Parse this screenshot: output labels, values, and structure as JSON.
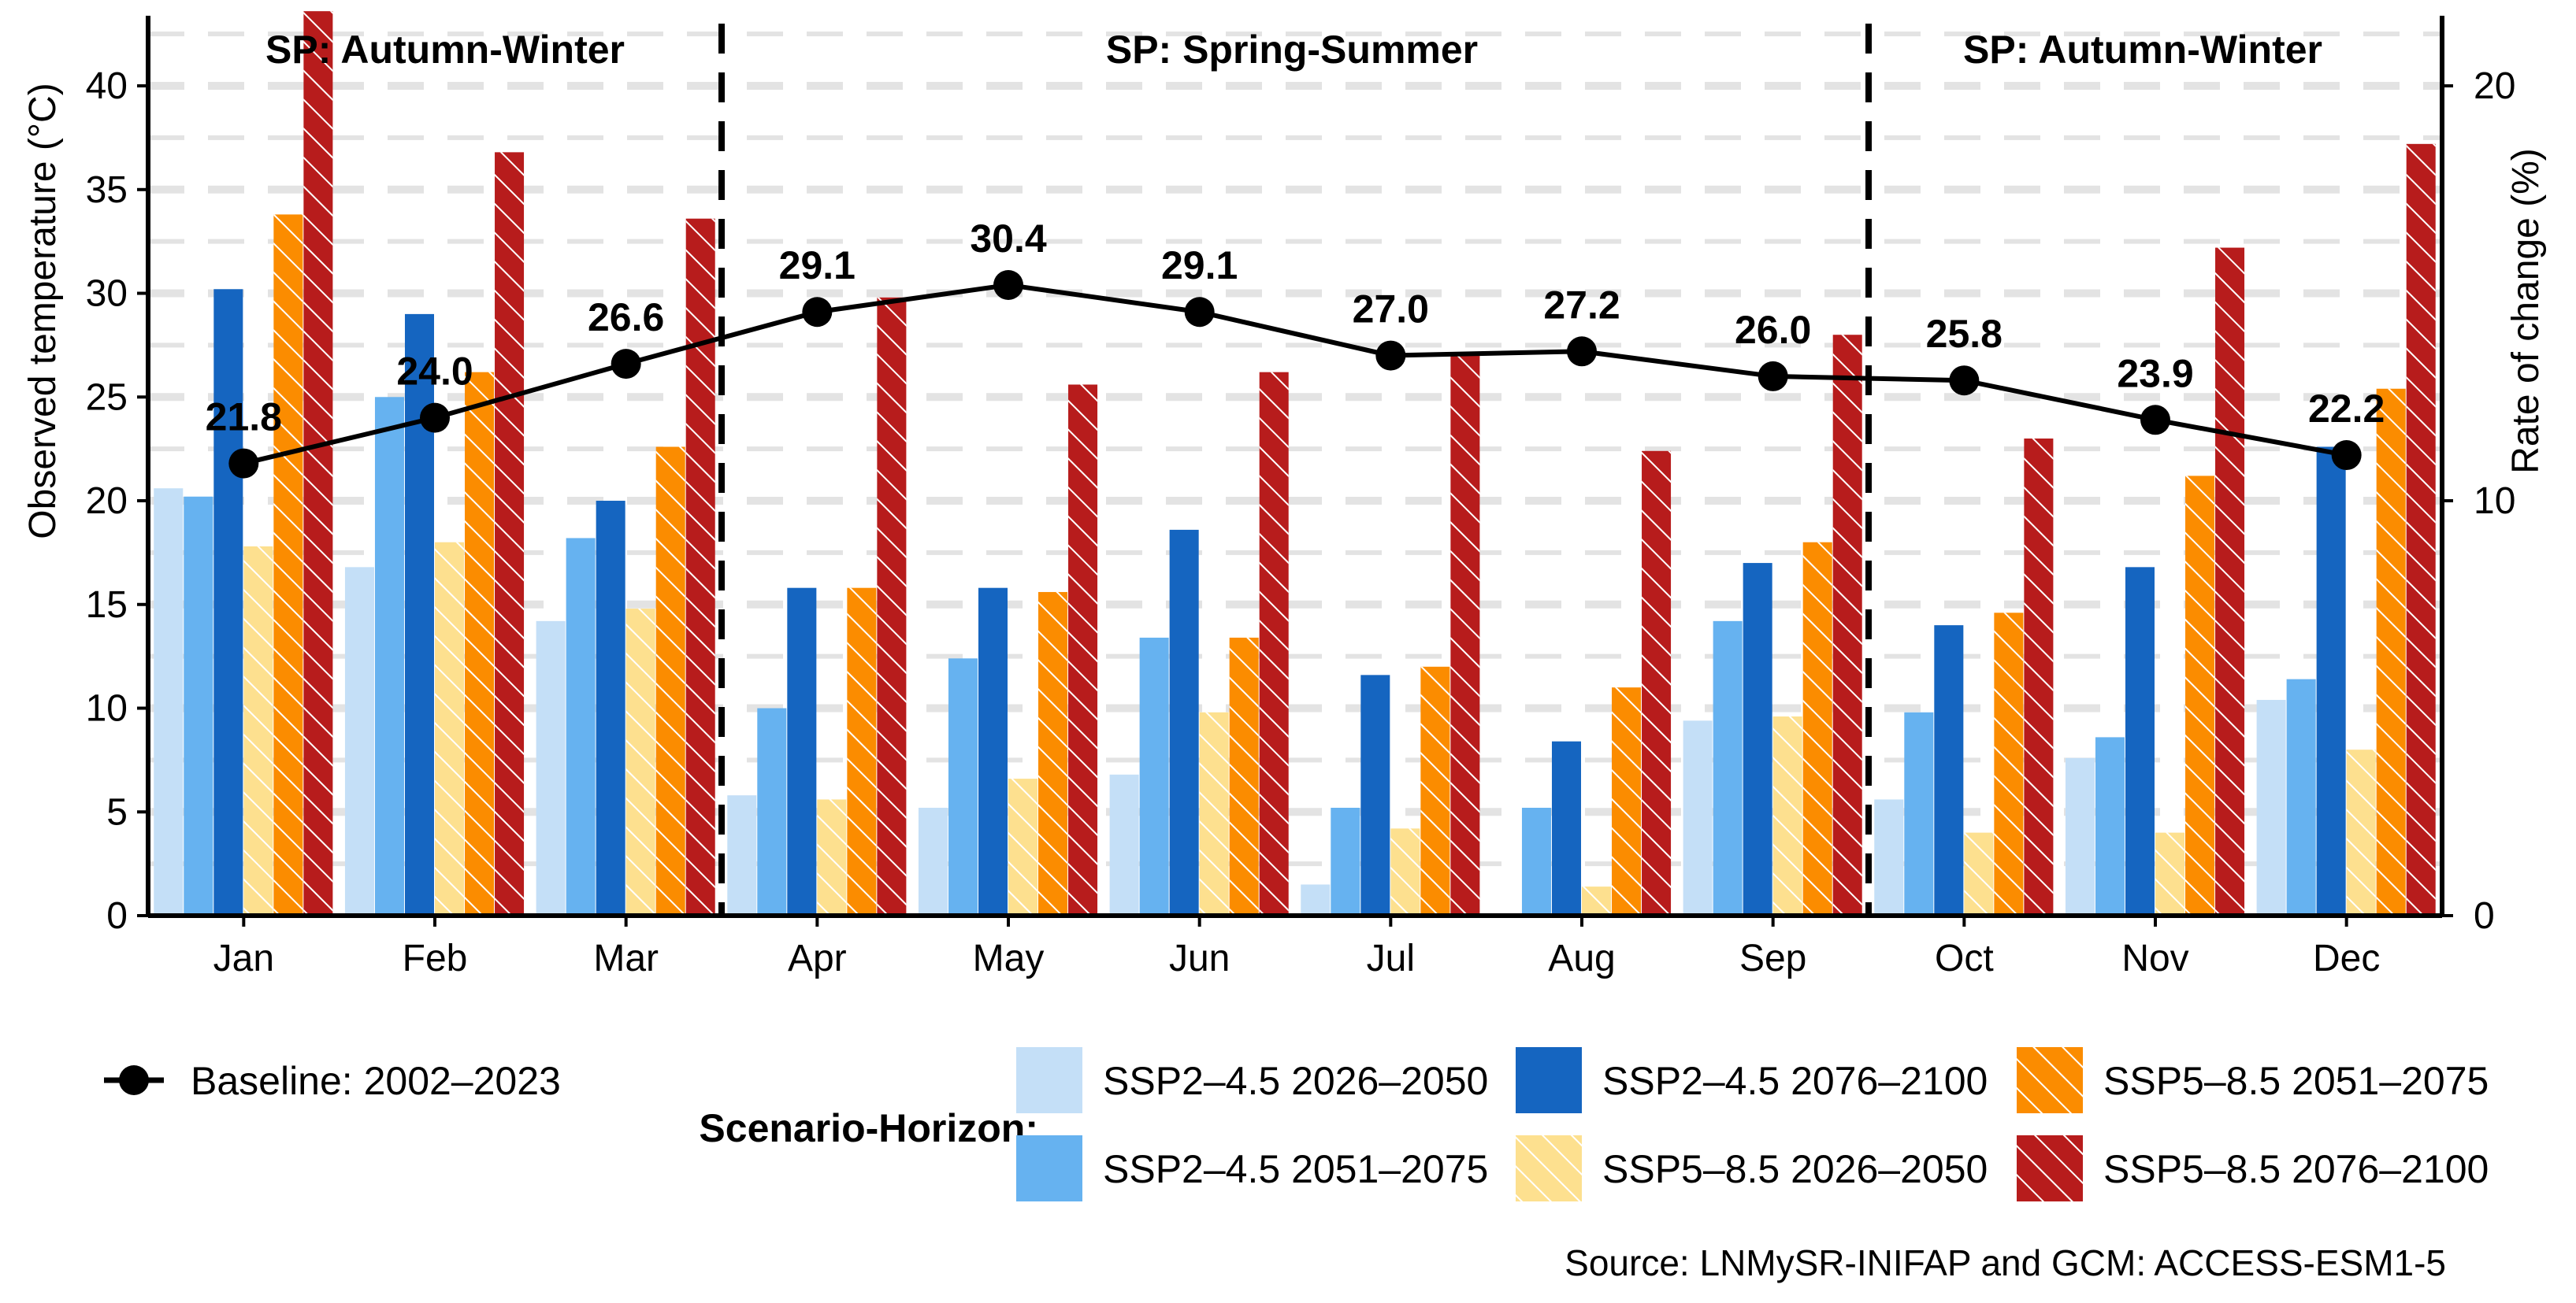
{
  "chart_data": {
    "type": "bar",
    "categories": [
      "Jan",
      "Feb",
      "Mar",
      "Apr",
      "May",
      "Jun",
      "Jul",
      "Aug",
      "Sep",
      "Oct",
      "Nov",
      "Dec"
    ],
    "ylabel": "Observed temperature (°C)",
    "y2label": "Rate of change (%)",
    "ylim": [
      0,
      43
    ],
    "y2lim": [
      0,
      21.5
    ],
    "yticks": [
      0,
      5,
      10,
      15,
      20,
      25,
      30,
      35,
      40
    ],
    "y2ticks": [
      0,
      10,
      20
    ],
    "grid": "horizontal dashed",
    "season_labels": [
      {
        "label": "SP: Autumn-Winter"
      },
      {
        "label": "SP: Spring-Summer"
      },
      {
        "label": "SP: Autumn-Winter"
      }
    ],
    "season_dividers_after": [
      "Mar",
      "Sep"
    ],
    "baseline": {
      "name": "Baseline: 2002–2023",
      "axis": "left",
      "values": [
        21.8,
        24.0,
        26.6,
        29.1,
        30.4,
        29.1,
        27.0,
        27.2,
        26.0,
        25.8,
        23.9,
        22.2
      ],
      "labels": [
        "21.8",
        "24.0",
        "26.6",
        "29.1",
        "30.4",
        "29.1",
        "27.0",
        "27.2",
        "26.0",
        "25.8",
        "23.9",
        "22.2"
      ],
      "color": "#000000"
    },
    "series": [
      {
        "name": "SSP2–4.5 2026–2050",
        "axis": "right",
        "color": "#c4dff7",
        "hatch": false,
        "values": [
          10.3,
          8.4,
          7.1,
          2.9,
          2.6,
          3.4,
          0.75,
          0.05,
          4.7,
          2.8,
          3.8,
          5.2
        ]
      },
      {
        "name": "SSP2–4.5 2051–2075",
        "axis": "right",
        "color": "#66b2f0",
        "hatch": false,
        "values": [
          10.1,
          12.5,
          9.1,
          5.0,
          6.2,
          6.7,
          2.6,
          2.6,
          7.1,
          4.9,
          4.3,
          5.7
        ]
      },
      {
        "name": "SSP2–4.5 2076–2100",
        "axis": "right",
        "color": "#1565c0",
        "hatch": false,
        "values": [
          15.1,
          14.5,
          10.0,
          7.9,
          7.9,
          9.3,
          5.8,
          4.2,
          8.5,
          7.0,
          8.4,
          11.3
        ]
      },
      {
        "name": "SSP5–8.5 2026–2050",
        "axis": "right",
        "color": "#fde08f",
        "hatch": true,
        "values": [
          8.9,
          9.0,
          7.4,
          2.8,
          3.3,
          4.9,
          2.1,
          0.7,
          4.8,
          2.0,
          2.0,
          4.0
        ]
      },
      {
        "name": "SSP5–8.5 2051–2075",
        "axis": "right",
        "color": "#fb8c00",
        "hatch": true,
        "values": [
          16.9,
          13.1,
          11.3,
          7.9,
          7.8,
          6.7,
          6.0,
          5.5,
          9.0,
          7.3,
          10.6,
          12.7
        ]
      },
      {
        "name": "SSP5–8.5 2076–2100",
        "axis": "right",
        "color": "#b71c1c",
        "hatch": true,
        "values": [
          21.8,
          18.4,
          16.8,
          14.9,
          12.8,
          13.1,
          13.5,
          11.2,
          14.0,
          11.5,
          16.1,
          18.6
        ]
      }
    ],
    "legend": {
      "title": "Scenario-Horizon:",
      "placement": "bottom"
    },
    "source": "Source: LNMySR-INIFAP and GCM: ACCESS-ESM1-5"
  }
}
